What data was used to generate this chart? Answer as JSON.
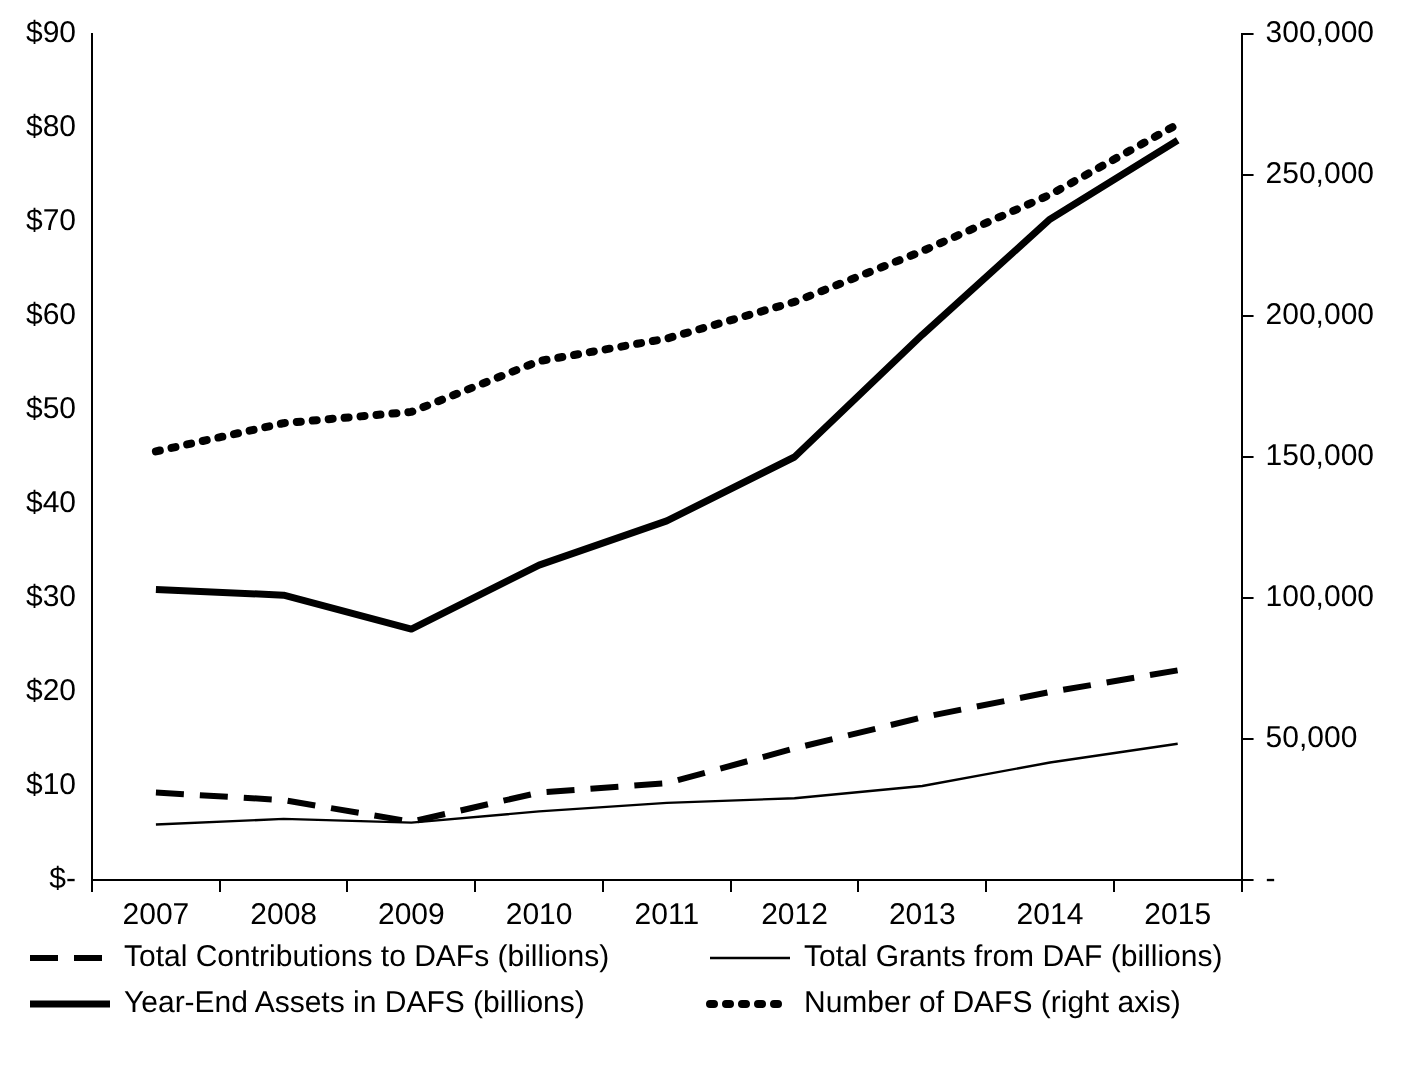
{
  "chart_data": {
    "type": "line",
    "categories": [
      "2007",
      "2008",
      "2009",
      "2010",
      "2011",
      "2012",
      "2013",
      "2014",
      "2015"
    ],
    "series": [
      {
        "name": "Total Contributions to DAFs (billions)",
        "color": "#000000",
        "line_style": "dashed",
        "values": [
          9.3,
          8.5,
          6.2,
          9.3,
          10.3,
          14,
          17.3,
          20,
          22.3
        ]
      },
      {
        "name": "Total Grants from DAF (billions)",
        "color": "#000000",
        "line_style": "solid",
        "values": [
          5.9,
          6.5,
          6.1,
          7.3,
          8.2,
          8.7,
          10,
          12.5,
          14.5
        ]
      },
      {
        "name": "Year-End Assets in DAFS (billions)",
        "color": "#000000",
        "line_style": "solid",
        "values": [
          30.9,
          30.3,
          26.7,
          33.5,
          38.2,
          45,
          58,
          70.3,
          78.7
        ]
      },
      {
        "name": "Number of DAFS (right axis)",
        "color": "#000000",
        "line_style": "dotted",
        "axis": "y2",
        "values": [
          152000,
          162000,
          166000,
          184000,
          192000,
          205000,
          223000,
          243000,
          268000
        ]
      }
    ],
    "ylim": [
      0,
      90
    ],
    "yticks": [
      {
        "value": 0,
        "label": "$-"
      },
      {
        "value": 10,
        "label": "$10"
      },
      {
        "value": 20,
        "label": "$20"
      },
      {
        "value": 30,
        "label": "$30"
      },
      {
        "value": 40,
        "label": "$40"
      },
      {
        "value": 50,
        "label": "$50"
      },
      {
        "value": 60,
        "label": "$60"
      },
      {
        "value": 70,
        "label": "$70"
      },
      {
        "value": 80,
        "label": "$80"
      },
      {
        "value": 90,
        "label": "$90"
      }
    ],
    "y2lim": [
      0,
      300000
    ],
    "y2ticks": [
      {
        "value": 0,
        "label": "-"
      },
      {
        "value": 50000,
        "label": "50,000"
      },
      {
        "value": 100000,
        "label": "100,000"
      },
      {
        "value": 150000,
        "label": "150,000"
      },
      {
        "value": 200000,
        "label": "200,000"
      },
      {
        "value": 250000,
        "label": "250,000"
      },
      {
        "value": 300000,
        "label": "300,000"
      }
    ],
    "grid": false,
    "legend": "bottom",
    "marker": "none"
  }
}
